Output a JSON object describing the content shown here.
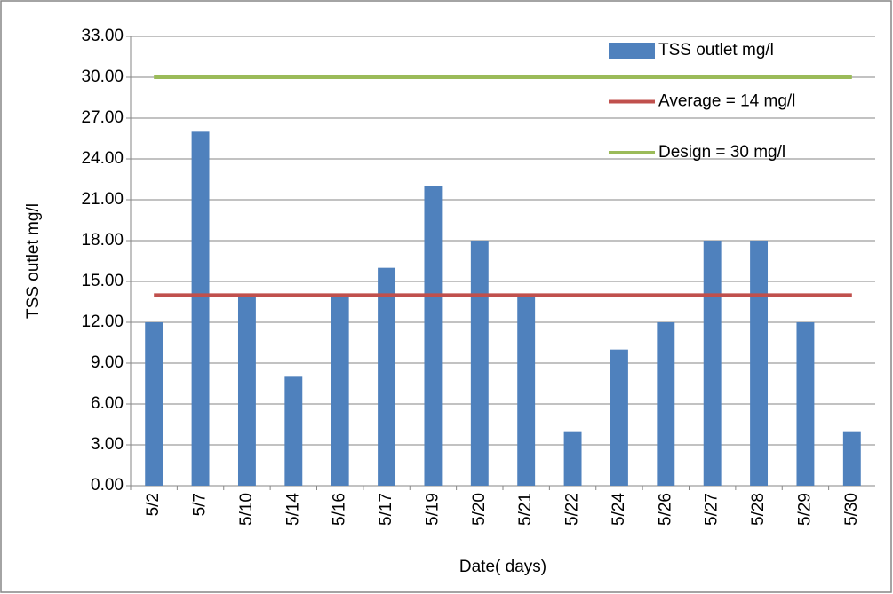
{
  "chart_data": {
    "type": "bar",
    "x_label": "Date( days)",
    "y_label": "TSS outlet mg/l",
    "categories": [
      "5/2",
      "5/7",
      "5/10",
      "5/14",
      "5/16",
      "5/17",
      "5/19",
      "5/20",
      "5/21",
      "5/22",
      "5/24",
      "5/26",
      "5/27",
      "5/28",
      "5/29",
      "5/30"
    ],
    "series": [
      {
        "name": "TSS outlet mg/l",
        "type": "bar",
        "color": "#4f81bd",
        "values": [
          12,
          26,
          14,
          8,
          14,
          16,
          22,
          18,
          14,
          4,
          10,
          12,
          18,
          18,
          12,
          4
        ]
      },
      {
        "name": "Average = 14 mg/l",
        "type": "line",
        "color": "#c0504d",
        "values": [
          14,
          14,
          14,
          14,
          14,
          14,
          14,
          14,
          14,
          14,
          14,
          14,
          14,
          14,
          14,
          14
        ]
      },
      {
        "name": "Design = 30 mg/l",
        "type": "line",
        "color": "#9bbb59",
        "values": [
          30,
          30,
          30,
          30,
          30,
          30,
          30,
          30,
          30,
          30,
          30,
          30,
          30,
          30,
          30,
          30
        ]
      }
    ],
    "ylim": [
      0,
      33
    ],
    "yticks": [
      {
        "value": 0,
        "label": "0.00"
      },
      {
        "value": 3,
        "label": "3.00"
      },
      {
        "value": 6,
        "label": "6.00"
      },
      {
        "value": 9,
        "label": "9.00"
      },
      {
        "value": 12,
        "label": "12.00"
      },
      {
        "value": 15,
        "label": "15.00"
      },
      {
        "value": 18,
        "label": "18.00"
      },
      {
        "value": 21,
        "label": "21.00"
      },
      {
        "value": 24,
        "label": "24.00"
      },
      {
        "value": 27,
        "label": "27.00"
      },
      {
        "value": 30,
        "label": "30.00"
      },
      {
        "value": 33,
        "label": "33.00"
      }
    ],
    "grid": true,
    "legend": "top-right"
  }
}
